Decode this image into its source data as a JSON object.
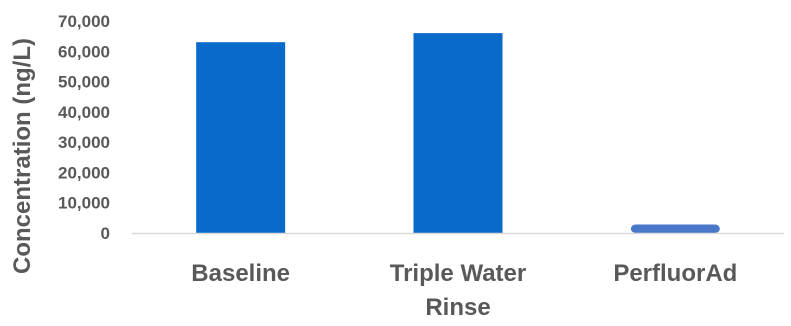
{
  "chart_data": {
    "type": "bar",
    "title": "",
    "xlabel": "",
    "ylabel": "Concentration (ng/L)",
    "categories": [
      [
        "Baseline"
      ],
      [
        "Triple Water",
        "Rinse"
      ],
      [
        "PerfluorAd"
      ]
    ],
    "values": [
      63000,
      66000,
      2800
    ],
    "ylim": [
      0,
      70000
    ],
    "yticks": [
      0,
      10000,
      20000,
      30000,
      40000,
      50000,
      60000,
      70000
    ],
    "ytick_labels": [
      "0",
      "10,000",
      "20,000",
      "30,000",
      "40,000",
      "50,000",
      "60,000",
      "70,000"
    ],
    "grid": false,
    "legend": "none",
    "colors": {
      "bars": [
        "#0a6ac9",
        "#0a6ac9",
        "#4a78c9"
      ],
      "axis": "#d9d9d9",
      "text": "#595959"
    }
  }
}
